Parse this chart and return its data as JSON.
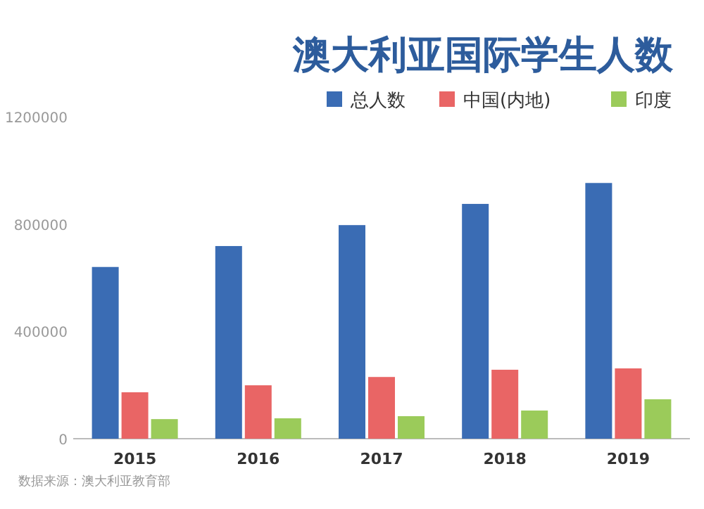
{
  "chart_data": {
    "type": "bar",
    "title": "澳大利亚国际学生人数",
    "categories": [
      "2015",
      "2016",
      "2017",
      "2018",
      "2019"
    ],
    "series": [
      {
        "name": "总人数",
        "color": "#3a6cb4",
        "values": [
          640000,
          718000,
          796000,
          875000,
          953000
        ]
      },
      {
        "name": "中国(内地)",
        "color": "#e96565",
        "values": [
          173000,
          199000,
          230000,
          257000,
          262000
        ]
      },
      {
        "name": "印度",
        "color": "#9bcb5a",
        "values": [
          73000,
          76000,
          84000,
          105000,
          147000
        ]
      }
    ],
    "ylim": [
      0,
      1200000
    ],
    "yticks": [
      0,
      400000,
      800000,
      1200000
    ],
    "legend": "top right",
    "annotations": [
      "数据来源：澳大利亚教育部"
    ]
  }
}
